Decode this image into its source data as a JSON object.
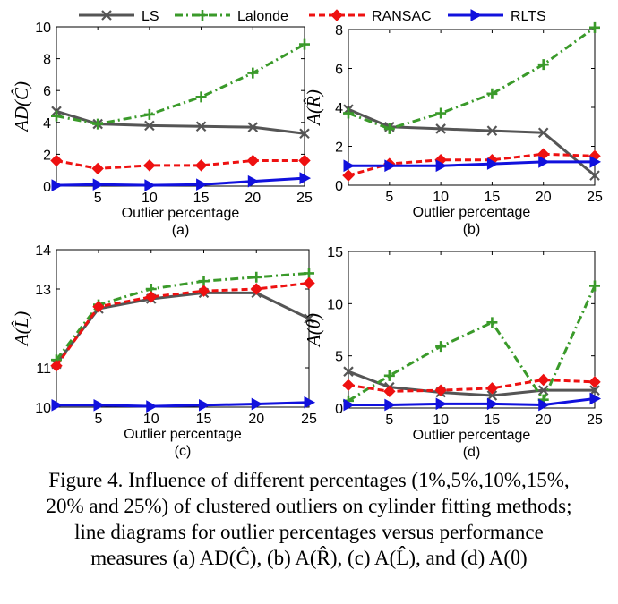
{
  "legend": {
    "placement": "top",
    "entries": [
      {
        "label": "LS",
        "color": "#555555",
        "marker": "x",
        "dash": "solid"
      },
      {
        "label": "Lalonde",
        "color": "#3a9a2a",
        "marker": "plus",
        "dash": "dashdot"
      },
      {
        "label": "RANSAC",
        "color": "#ee1111",
        "marker": "diamond",
        "dash": "dashed"
      },
      {
        "label": "RLTS",
        "color": "#1111dd",
        "marker": "triangle",
        "dash": "solid"
      }
    ]
  },
  "chart_data": [
    {
      "type": "line",
      "panel_label": "(a)",
      "ylabel": "AD(Ĉ)",
      "xlabel": "Outlier percentage",
      "x": [
        1,
        5,
        10,
        15,
        20,
        25
      ],
      "xticks": [
        5,
        10,
        15,
        20,
        25
      ],
      "xlim": [
        1,
        25
      ],
      "ylim": [
        0,
        10
      ],
      "yticks": [
        0,
        2,
        4,
        6,
        8,
        10
      ],
      "grid": false,
      "series": [
        {
          "name": "LS",
          "values": [
            4.7,
            3.9,
            3.8,
            3.75,
            3.7,
            3.3
          ]
        },
        {
          "name": "Lalonde",
          "values": [
            4.4,
            3.9,
            4.5,
            5.6,
            7.1,
            8.9
          ]
        },
        {
          "name": "RANSAC",
          "values": [
            1.6,
            1.1,
            1.3,
            1.3,
            1.6,
            1.6
          ]
        },
        {
          "name": "RLTS",
          "values": [
            0.05,
            0.1,
            0.05,
            0.1,
            0.3,
            0.5
          ]
        }
      ]
    },
    {
      "type": "line",
      "panel_label": "(b)",
      "ylabel": "A(R̂)",
      "xlabel": "Outlier percentage",
      "x": [
        1,
        5,
        10,
        15,
        20,
        25
      ],
      "xticks": [
        5,
        10,
        15,
        20,
        25
      ],
      "xlim": [
        1,
        25
      ],
      "ylim": [
        0,
        8
      ],
      "yticks": [
        0,
        2,
        4,
        6,
        8
      ],
      "grid": false,
      "series": [
        {
          "name": "LS",
          "values": [
            3.9,
            3.0,
            2.9,
            2.8,
            2.7,
            0.5
          ]
        },
        {
          "name": "Lalonde",
          "values": [
            3.7,
            2.9,
            3.7,
            4.7,
            6.2,
            8.1
          ]
        },
        {
          "name": "RANSAC",
          "values": [
            0.5,
            1.1,
            1.3,
            1.3,
            1.6,
            1.5
          ]
        },
        {
          "name": "RLTS",
          "values": [
            1.0,
            1.0,
            1.0,
            1.1,
            1.2,
            1.2
          ]
        }
      ]
    },
    {
      "type": "line",
      "panel_label": "(c)",
      "ylabel": "A(L̂)",
      "xlabel": "Outlier percentage",
      "x": [
        1,
        5,
        10,
        15,
        20,
        25
      ],
      "xticks": [
        5,
        10,
        15,
        20,
        25
      ],
      "xlim": [
        1,
        25
      ],
      "ylim": [
        10,
        14
      ],
      "yticks": [
        10,
        11,
        13,
        14
      ],
      "grid": false,
      "series": [
        {
          "name": "LS",
          "values": [
            11.1,
            12.5,
            12.75,
            12.9,
            12.9,
            12.25
          ]
        },
        {
          "name": "Lalonde",
          "values": [
            11.2,
            12.6,
            13.0,
            13.2,
            13.3,
            13.4
          ]
        },
        {
          "name": "RANSAC",
          "values": [
            11.05,
            12.55,
            12.8,
            12.95,
            13.0,
            13.15
          ]
        },
        {
          "name": "RLTS",
          "values": [
            10.05,
            10.05,
            10.02,
            10.05,
            10.08,
            10.12
          ]
        }
      ]
    },
    {
      "type": "line",
      "panel_label": "(d)",
      "ylabel": "A(θ)",
      "xlabel": "Outlier percentage",
      "x": [
        1,
        5,
        10,
        15,
        20,
        25
      ],
      "xticks": [
        5,
        10,
        15,
        20,
        25
      ],
      "xlim": [
        1,
        25
      ],
      "ylim": [
        0,
        15
      ],
      "yticks": [
        0,
        5,
        10,
        15
      ],
      "grid": false,
      "series": [
        {
          "name": "LS",
          "values": [
            3.5,
            2.0,
            1.5,
            1.2,
            1.7,
            1.7
          ]
        },
        {
          "name": "Lalonde",
          "values": [
            0.7,
            3.1,
            5.9,
            8.2,
            0.8,
            11.7
          ]
        },
        {
          "name": "RANSAC",
          "values": [
            2.2,
            1.6,
            1.7,
            1.9,
            2.7,
            2.5
          ]
        },
        {
          "name": "RLTS",
          "values": [
            0.3,
            0.3,
            0.4,
            0.4,
            0.3,
            0.9
          ]
        }
      ]
    }
  ],
  "caption": {
    "line1": "Figure 4. Influence of different percentages (1%,5%,10%,15%,",
    "line2": "20% and 25%) of clustered outliers on cylinder fitting methods;",
    "line3": "line diagrams for outlier percentages versus performance",
    "line4": "measures (a) AD(Ĉ), (b) A(R̂), (c) A(L̂), and (d) A(θ)"
  }
}
